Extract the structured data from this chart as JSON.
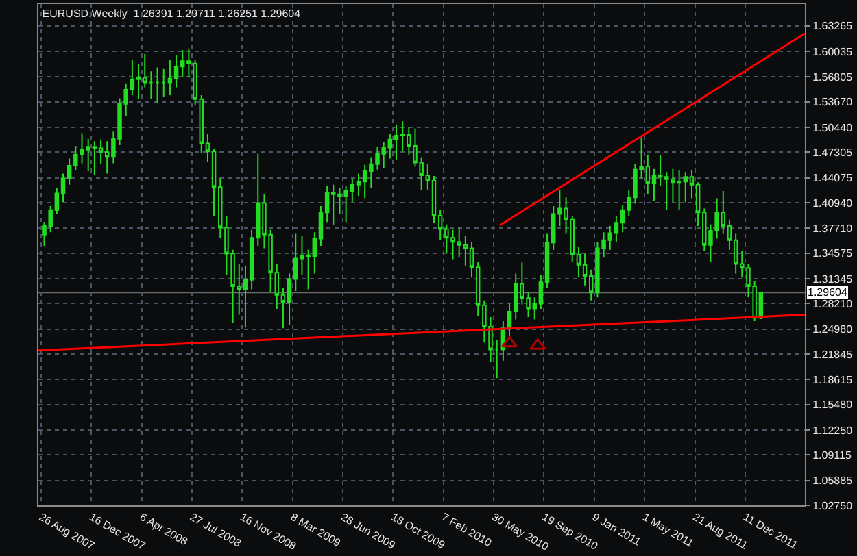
{
  "chart_data": {
    "type": "candlestick",
    "title": "EURUSD,Weekly  1.26391 1.29711 1.26251 1.29604",
    "color": "#22dd22",
    "x": [
      "2007-09-02",
      "2007-09-16",
      "2007-09-30",
      "2007-10-14",
      "2007-10-28",
      "2007-11-11",
      "2007-11-25",
      "2007-12-09",
      "2007-12-23",
      "2008-01-06",
      "2008-01-20",
      "2008-02-03",
      "2008-02-17",
      "2008-03-02",
      "2008-03-16",
      "2008-03-30",
      "2008-04-13",
      "2008-04-27",
      "2008-05-11",
      "2008-05-25",
      "2008-06-08",
      "2008-06-22",
      "2008-07-06",
      "2008-07-20",
      "2008-08-03",
      "2008-08-17",
      "2008-08-31",
      "2008-09-14",
      "2008-09-28",
      "2008-10-12",
      "2008-10-26",
      "2008-11-09",
      "2008-11-23",
      "2008-12-07",
      "2008-12-21",
      "2009-01-04",
      "2009-01-18",
      "2009-02-01",
      "2009-02-15",
      "2009-03-01",
      "2009-03-15",
      "2009-03-29",
      "2009-04-12",
      "2009-04-26",
      "2009-05-10",
      "2009-05-24",
      "2009-06-07",
      "2009-06-21",
      "2009-07-05",
      "2009-07-19",
      "2009-08-02",
      "2009-08-16",
      "2009-08-30",
      "2009-09-13",
      "2009-09-27",
      "2009-10-11",
      "2009-10-25",
      "2009-11-08",
      "2009-11-22",
      "2009-12-06",
      "2009-12-20",
      "2010-01-03",
      "2010-01-17",
      "2010-01-31",
      "2010-02-14",
      "2010-02-28",
      "2010-03-14",
      "2010-03-28",
      "2010-04-11",
      "2010-04-25",
      "2010-05-09",
      "2010-05-23",
      "2010-06-06",
      "2010-06-20",
      "2010-07-04",
      "2010-07-18",
      "2010-08-01",
      "2010-08-15",
      "2010-08-29",
      "2010-09-12",
      "2010-09-26",
      "2010-10-10",
      "2010-10-24",
      "2010-11-07",
      "2010-11-21",
      "2010-12-05",
      "2010-12-19",
      "2011-01-02",
      "2011-01-16",
      "2011-01-30",
      "2011-02-13",
      "2011-02-27",
      "2011-03-13",
      "2011-03-27",
      "2011-04-10",
      "2011-04-24",
      "2011-05-08",
      "2011-05-22",
      "2011-06-05",
      "2011-06-19",
      "2011-07-03",
      "2011-07-17",
      "2011-07-31",
      "2011-08-14",
      "2011-08-28",
      "2011-09-11",
      "2011-09-25",
      "2011-10-09",
      "2011-10-23",
      "2011-11-06",
      "2011-11-20",
      "2011-12-04",
      "2011-12-18",
      "2012-01-01",
      "2012-01-15"
    ],
    "ohlc": [
      [
        1.369,
        1.385,
        1.355,
        1.38
      ],
      [
        1.38,
        1.405,
        1.372,
        1.4
      ],
      [
        1.4,
        1.428,
        1.395,
        1.421
      ],
      [
        1.421,
        1.446,
        1.41,
        1.44
      ],
      [
        1.44,
        1.465,
        1.432,
        1.456
      ],
      [
        1.456,
        1.481,
        1.45,
        1.47
      ],
      [
        1.47,
        1.497,
        1.459,
        1.476
      ],
      [
        1.476,
        1.49,
        1.449,
        1.48
      ],
      [
        1.48,
        1.487,
        1.444,
        1.478
      ],
      [
        1.478,
        1.489,
        1.458,
        1.473
      ],
      [
        1.473,
        1.487,
        1.446,
        1.467
      ],
      [
        1.467,
        1.499,
        1.459,
        1.49
      ],
      [
        1.49,
        1.541,
        1.482,
        1.534
      ],
      [
        1.534,
        1.56,
        1.519,
        1.552
      ],
      [
        1.552,
        1.59,
        1.545,
        1.565
      ],
      [
        1.565,
        1.584,
        1.54,
        1.567
      ],
      [
        1.567,
        1.597,
        1.555,
        1.561
      ],
      [
        1.561,
        1.575,
        1.54,
        1.561
      ],
      [
        1.561,
        1.58,
        1.535,
        1.561
      ],
      [
        1.561,
        1.578,
        1.543,
        1.561
      ],
      [
        1.561,
        1.59,
        1.545,
        1.566
      ],
      [
        1.566,
        1.596,
        1.555,
        1.581
      ],
      [
        1.581,
        1.602,
        1.568,
        1.588
      ],
      [
        1.588,
        1.604,
        1.567,
        1.585
      ],
      [
        1.585,
        1.59,
        1.532,
        1.54
      ],
      [
        1.54,
        1.545,
        1.472,
        1.484
      ],
      [
        1.484,
        1.496,
        1.461,
        1.474
      ],
      [
        1.474,
        1.477,
        1.392,
        1.429
      ],
      [
        1.429,
        1.44,
        1.365,
        1.378
      ],
      [
        1.378,
        1.392,
        1.318,
        1.345
      ],
      [
        1.345,
        1.35,
        1.258,
        1.304
      ],
      [
        1.304,
        1.332,
        1.268,
        1.3
      ],
      [
        1.3,
        1.33,
        1.252,
        1.312
      ],
      [
        1.312,
        1.375,
        1.3,
        1.365
      ],
      [
        1.365,
        1.471,
        1.355,
        1.409
      ],
      [
        1.409,
        1.42,
        1.352,
        1.369
      ],
      [
        1.369,
        1.375,
        1.297,
        1.321
      ],
      [
        1.321,
        1.332,
        1.275,
        1.293
      ],
      [
        1.293,
        1.302,
        1.251,
        1.284
      ],
      [
        1.284,
        1.32,
        1.255,
        1.313
      ],
      [
        1.313,
        1.37,
        1.298,
        1.339
      ],
      [
        1.339,
        1.368,
        1.318,
        1.343
      ],
      [
        1.343,
        1.35,
        1.3,
        1.341
      ],
      [
        1.341,
        1.372,
        1.32,
        1.364
      ],
      [
        1.364,
        1.405,
        1.355,
        1.397
      ],
      [
        1.397,
        1.43,
        1.385,
        1.422
      ],
      [
        1.422,
        1.432,
        1.381,
        1.42
      ],
      [
        1.42,
        1.428,
        1.395,
        1.418
      ],
      [
        1.418,
        1.43,
        1.385,
        1.424
      ],
      [
        1.424,
        1.44,
        1.41,
        1.432
      ],
      [
        1.432,
        1.446,
        1.418,
        1.436
      ],
      [
        1.436,
        1.457,
        1.415,
        1.449
      ],
      [
        1.449,
        1.466,
        1.428,
        1.458
      ],
      [
        1.458,
        1.48,
        1.451,
        1.471
      ],
      [
        1.471,
        1.486,
        1.453,
        1.479
      ],
      [
        1.479,
        1.496,
        1.465,
        1.489
      ],
      [
        1.489,
        1.508,
        1.464,
        1.494
      ],
      [
        1.494,
        1.512,
        1.474,
        1.495
      ],
      [
        1.495,
        1.505,
        1.47,
        1.481
      ],
      [
        1.481,
        1.503,
        1.455,
        1.46
      ],
      [
        1.46,
        1.466,
        1.425,
        1.444
      ],
      [
        1.444,
        1.458,
        1.426,
        1.437
      ],
      [
        1.437,
        1.443,
        1.384,
        1.393
      ],
      [
        1.393,
        1.4,
        1.362,
        1.376
      ],
      [
        1.376,
        1.382,
        1.345,
        1.365
      ],
      [
        1.365,
        1.375,
        1.338,
        1.36
      ],
      [
        1.36,
        1.378,
        1.34,
        1.356
      ],
      [
        1.356,
        1.368,
        1.33,
        1.352
      ],
      [
        1.352,
        1.36,
        1.315,
        1.328
      ],
      [
        1.328,
        1.335,
        1.266,
        1.28
      ],
      [
        1.28,
        1.286,
        1.233,
        1.253
      ],
      [
        1.253,
        1.265,
        1.208,
        1.224
      ],
      [
        1.224,
        1.236,
        1.188,
        1.224
      ],
      [
        1.224,
        1.26,
        1.21,
        1.251
      ],
      [
        1.251,
        1.282,
        1.24,
        1.272
      ],
      [
        1.272,
        1.32,
        1.262,
        1.307
      ],
      [
        1.307,
        1.334,
        1.281,
        1.289
      ],
      [
        1.289,
        1.296,
        1.265,
        1.275
      ],
      [
        1.275,
        1.29,
        1.262,
        1.282
      ],
      [
        1.282,
        1.318,
        1.275,
        1.309
      ],
      [
        1.309,
        1.37,
        1.302,
        1.359
      ],
      [
        1.359,
        1.405,
        1.35,
        1.395
      ],
      [
        1.395,
        1.425,
        1.38,
        1.402
      ],
      [
        1.402,
        1.416,
        1.37,
        1.388
      ],
      [
        1.388,
        1.393,
        1.335,
        1.344
      ],
      [
        1.344,
        1.354,
        1.315,
        1.331
      ],
      [
        1.331,
        1.345,
        1.305,
        1.317
      ],
      [
        1.317,
        1.325,
        1.286,
        1.296
      ],
      [
        1.296,
        1.36,
        1.29,
        1.352
      ],
      [
        1.352,
        1.372,
        1.34,
        1.362
      ],
      [
        1.362,
        1.38,
        1.35,
        1.371
      ],
      [
        1.371,
        1.393,
        1.36,
        1.384
      ],
      [
        1.384,
        1.406,
        1.372,
        1.4
      ],
      [
        1.4,
        1.425,
        1.392,
        1.416
      ],
      [
        1.416,
        1.458,
        1.408,
        1.451
      ],
      [
        1.451,
        1.492,
        1.44,
        1.455
      ],
      [
        1.455,
        1.47,
        1.42,
        1.434
      ],
      [
        1.434,
        1.452,
        1.412,
        1.444
      ],
      [
        1.444,
        1.469,
        1.43,
        1.442
      ],
      [
        1.442,
        1.448,
        1.4,
        1.439
      ],
      [
        1.439,
        1.452,
        1.41,
        1.435
      ],
      [
        1.435,
        1.45,
        1.4,
        1.436
      ],
      [
        1.436,
        1.448,
        1.41,
        1.442
      ],
      [
        1.442,
        1.45,
        1.415,
        1.432
      ],
      [
        1.432,
        1.435,
        1.38,
        1.397
      ],
      [
        1.397,
        1.402,
        1.348,
        1.356
      ],
      [
        1.356,
        1.382,
        1.335,
        1.374
      ],
      [
        1.374,
        1.415,
        1.364,
        1.397
      ],
      [
        1.397,
        1.424,
        1.37,
        1.38
      ],
      [
        1.38,
        1.388,
        1.35,
        1.362
      ],
      [
        1.362,
        1.37,
        1.32,
        1.332
      ],
      [
        1.332,
        1.348,
        1.315,
        1.327
      ],
      [
        1.327,
        1.332,
        1.29,
        1.304
      ],
      [
        1.304,
        1.31,
        1.26,
        1.264
      ],
      [
        1.26391,
        1.29711,
        1.26251,
        1.29604
      ]
    ],
    "series": [
      {
        "type": "line",
        "color": "#ff0000",
        "line_style": "solid",
        "x": [
          "2007-08-20",
          "2012-04-22"
        ],
        "values": [
          1.223,
          1.268
        ]
      },
      {
        "type": "line",
        "color": "#ff0000",
        "line_style": "solid",
        "x": [
          "2010-06-13",
          "2012-04-22"
        ],
        "values": [
          1.381,
          1.623
        ]
      },
      {
        "type": "scatter",
        "color": "#b00000",
        "marker": "triangle",
        "x": [
          "2010-07-04",
          "2010-09-05"
        ],
        "values": [
          1.232,
          1.229
        ]
      }
    ],
    "ref_lines": [
      {
        "axis": "y",
        "value": 1.29604,
        "label": "1.29604",
        "color": "#6b6b6b"
      }
    ],
    "xlim": [
      "2007-08-20",
      "2012-04-22"
    ],
    "xticks": [
      {
        "value": "2007-08-26",
        "label": "26 Aug 2007"
      },
      {
        "value": "2007-12-16",
        "label": "16 Dec 2007"
      },
      {
        "value": "2008-04-06",
        "label": "6 Apr 2008"
      },
      {
        "value": "2008-07-27",
        "label": "27 Jul 2008"
      },
      {
        "value": "2008-11-16",
        "label": "16 Nov 2008"
      },
      {
        "value": "2009-03-08",
        "label": "8 Mar 2009"
      },
      {
        "value": "2009-06-28",
        "label": "28 Jun 2009"
      },
      {
        "value": "2009-10-18",
        "label": "18 Oct 2009"
      },
      {
        "value": "2010-02-07",
        "label": "7 Feb 2010"
      },
      {
        "value": "2010-05-30",
        "label": "30 May 2010"
      },
      {
        "value": "2010-09-19",
        "label": "19 Sep 2010"
      },
      {
        "value": "2011-01-09",
        "label": "9 Jan 2011"
      },
      {
        "value": "2011-05-01",
        "label": "1 May 2011"
      },
      {
        "value": "2011-08-21",
        "label": "21 Aug 2011"
      },
      {
        "value": "2011-12-11",
        "label": "11 Dec 2011"
      }
    ],
    "ylim": [
      1.0275,
      1.6599
    ],
    "yticks": [
      1.63265,
      1.60035,
      1.56805,
      {
        "value": 1.5367,
        "label": "1.53670"
      },
      {
        "value": 1.5044,
        "label": "1.50440"
      },
      1.47305,
      1.44075,
      {
        "value": 1.4094,
        "label": "1.40940"
      },
      {
        "value": 1.3771,
        "label": "1.37710"
      },
      1.34575,
      1.31345,
      {
        "value": 1.2821,
        "label": "1.28210"
      },
      {
        "value": 1.2498,
        "label": "1.24980"
      },
      1.21845,
      1.18615,
      {
        "value": 1.1548,
        "label": "1.15480"
      },
      {
        "value": 1.1225,
        "label": "1.12250"
      },
      1.09115,
      1.05885,
      {
        "value": 1.0275,
        "label": "1.02750"
      }
    ],
    "grid": true
  }
}
